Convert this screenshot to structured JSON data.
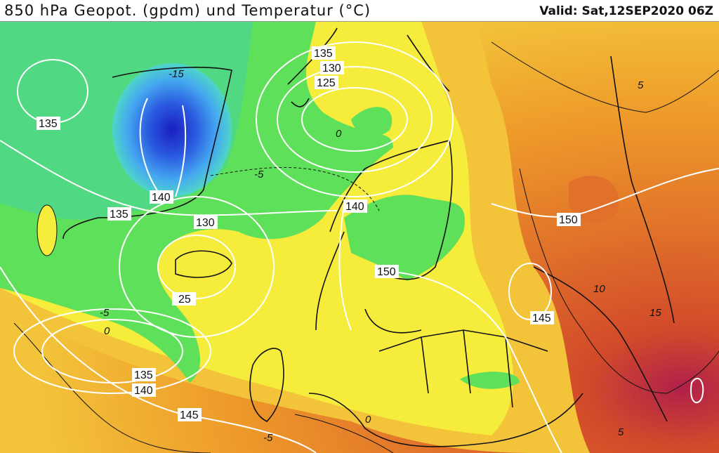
{
  "header": {
    "title": "850 hPa Geopot. (gpdm) und Temperatur (°C)",
    "valid": "Valid: Sat,12SEP2020 06Z"
  },
  "colors": {
    "deep_blue": "#1a2fd6",
    "blue": "#3f7ff0",
    "cyan": "#45c8e0",
    "teal_green": "#4ed68a",
    "green": "#5fe05a",
    "yellow": "#f5ec3c",
    "light_orange": "#f3c43a",
    "orange": "#ee9a2a",
    "dark_orange": "#e0702a",
    "red": "#d24a2a",
    "magenta": "#b0204a",
    "contour_geopotential": "#ffffff",
    "contour_temperature": "#111111"
  },
  "geopotential_labels": [
    "135",
    "130",
    "125",
    "135",
    "140",
    "135",
    "130",
    "25",
    "140",
    "150",
    "150",
    "145",
    "135",
    "140",
    "145"
  ],
  "temperature_labels": [
    "-15",
    "0",
    "-5",
    "5",
    "10",
    "15",
    "-5",
    "0",
    "5",
    "0",
    "-5"
  ]
}
